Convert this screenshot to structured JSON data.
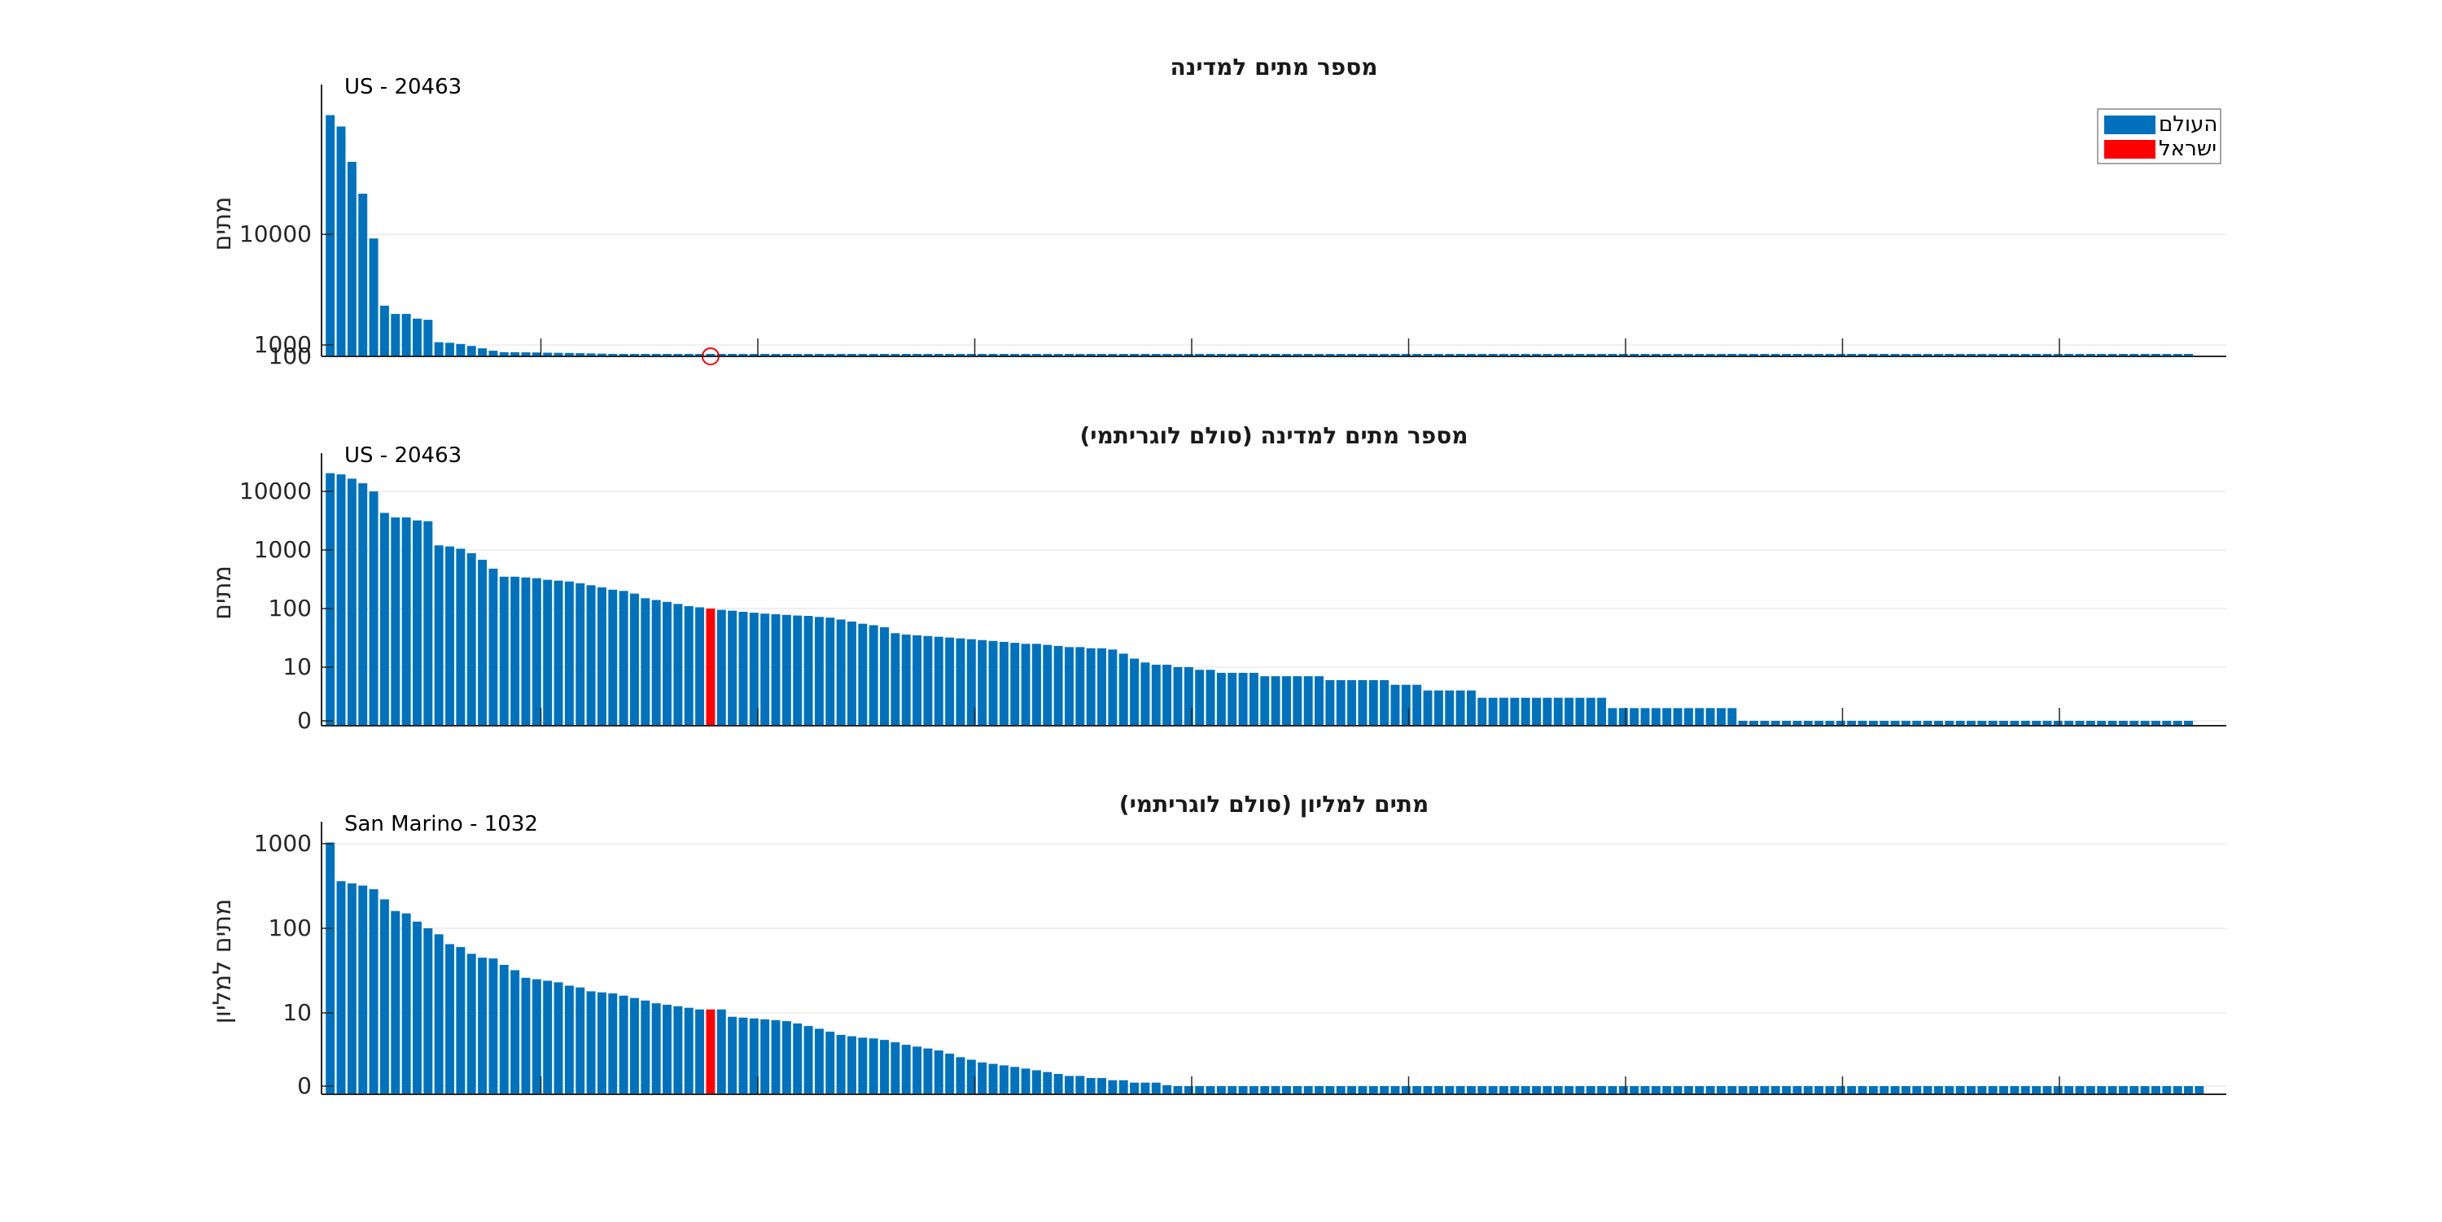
{
  "colors": {
    "world": "#0072BD",
    "israel": "#FF0000",
    "grid": "#ebebeb",
    "axis": "#262626"
  },
  "legend": {
    "items": [
      {
        "label": "העולם",
        "color": "#0072BD"
      },
      {
        "label": "ישראל",
        "color": "#FF0000"
      }
    ],
    "location": "top-right"
  },
  "chart_data": [
    {
      "type": "bar",
      "title": "מספר מתים למדינה",
      "ylabel": "מתים",
      "annotation": "US - 20463",
      "yscale": "linear",
      "ylim": [
        0,
        22500
      ],
      "yticks": [
        100,
        1000,
        10000
      ],
      "yticklabels": [
        "100",
        "1000",
        "10000"
      ],
      "marker": "circle at Israel bar",
      "highlight_index": 35,
      "grid": true,
      "values": [
        20463,
        19500,
        16500,
        13800,
        10000,
        4300,
        3600,
        3600,
        3200,
        3100,
        1200,
        1150,
        1050,
        880,
        680,
        480,
        350,
        350,
        340,
        330,
        310,
        300,
        290,
        270,
        250,
        230,
        210,
        200,
        180,
        150,
        140,
        130,
        120,
        110,
        105,
        100,
        95,
        92,
        88,
        85,
        82,
        80,
        78,
        76,
        75,
        72,
        70,
        65,
        60,
        55,
        52,
        48,
        38,
        36,
        35,
        34,
        33,
        32,
        31,
        30,
        29,
        28,
        27,
        26,
        25,
        25,
        24,
        23,
        22,
        22,
        21,
        21,
        20,
        17,
        14,
        12,
        11,
        11,
        10,
        10,
        9,
        9,
        8,
        8,
        8,
        8,
        7,
        7,
        7,
        7,
        7,
        7,
        6,
        6,
        6,
        6,
        6,
        6,
        5,
        5,
        5,
        4,
        4,
        4,
        4,
        4,
        3,
        3,
        3,
        3,
        3,
        3,
        3,
        3,
        3,
        3,
        3,
        3,
        2,
        2,
        2,
        2,
        2,
        2,
        2,
        2,
        2,
        2,
        2,
        2,
        1,
        1,
        1,
        1,
        1,
        1,
        1,
        1,
        1,
        1,
        1,
        1,
        1,
        1,
        1,
        1,
        1,
        1,
        1,
        1,
        1,
        1,
        1,
        1,
        1,
        1,
        1,
        1,
        1,
        1,
        1,
        1,
        1,
        1,
        1,
        1,
        1,
        1,
        1,
        1,
        1,
        1
      ]
    },
    {
      "type": "bar",
      "title": "מספר מתים למדינה (סולם לוגריתמי)",
      "ylabel": "מתים",
      "annotation": "US - 20463",
      "yscale": "log",
      "ylim": [
        0,
        25000
      ],
      "yticks": [
        0,
        10,
        100,
        1000,
        10000
      ],
      "yticklabels": [
        "0",
        "10",
        "100",
        "1000",
        "10000"
      ],
      "highlight_index": 35,
      "grid": true,
      "values": [
        20463,
        19500,
        16500,
        13800,
        10000,
        4300,
        3600,
        3600,
        3200,
        3100,
        1200,
        1150,
        1050,
        880,
        680,
        480,
        350,
        350,
        340,
        330,
        310,
        300,
        290,
        270,
        250,
        230,
        210,
        200,
        180,
        150,
        140,
        130,
        120,
        110,
        105,
        100,
        95,
        92,
        88,
        85,
        82,
        80,
        78,
        76,
        75,
        72,
        70,
        65,
        60,
        55,
        52,
        48,
        38,
        36,
        35,
        34,
        33,
        32,
        31,
        30,
        29,
        28,
        27,
        26,
        25,
        25,
        24,
        23,
        22,
        22,
        21,
        21,
        20,
        17,
        14,
        12,
        11,
        11,
        10,
        10,
        9,
        9,
        8,
        8,
        8,
        8,
        7,
        7,
        7,
        7,
        7,
        7,
        6,
        6,
        6,
        6,
        6,
        6,
        5,
        5,
        5,
        4,
        4,
        4,
        4,
        4,
        3,
        3,
        3,
        3,
        3,
        3,
        3,
        3,
        3,
        3,
        3,
        3,
        2,
        2,
        2,
        2,
        2,
        2,
        2,
        2,
        2,
        2,
        2,
        2,
        1,
        1,
        1,
        1,
        1,
        1,
        1,
        1,
        1,
        1,
        1,
        1,
        1,
        1,
        1,
        1,
        1,
        1,
        1,
        1,
        1,
        1,
        1,
        1,
        1,
        1,
        1,
        1,
        1,
        1,
        1,
        1,
        1,
        1,
        1,
        1,
        1,
        1,
        1,
        1,
        1,
        1
      ]
    },
    {
      "type": "bar",
      "title": "מתים למליון (סולם לוגריתמי)",
      "ylabel": "מתים למליון",
      "annotation": "San Marino - 1032",
      "yscale": "log",
      "ylim": [
        0,
        1300
      ],
      "yticks": [
        0,
        10,
        100,
        1000
      ],
      "yticklabels": [
        "0",
        "10",
        "100",
        "1000"
      ],
      "highlight_index": 35,
      "grid": true,
      "values": [
        1032,
        360,
        340,
        320,
        290,
        220,
        160,
        150,
        120,
        100,
        85,
        65,
        60,
        50,
        45,
        44,
        37,
        32,
        26,
        25,
        24,
        23,
        21,
        20,
        18,
        17.5,
        17,
        16,
        15,
        14,
        13,
        12.5,
        12,
        11.5,
        11,
        11,
        11,
        9,
        8.8,
        8.6,
        8.4,
        8.2,
        8,
        7.5,
        7,
        6.5,
        6,
        5.5,
        5.3,
        5.1,
        5,
        4.8,
        4.5,
        4.2,
        4,
        3.8,
        3.6,
        3.3,
        3,
        2.8,
        2.6,
        2.5,
        2.4,
        2.3,
        2.2,
        2.1,
        2,
        1.9,
        1.8,
        1.8,
        1.7,
        1.7,
        1.6,
        1.6,
        1.5,
        1.5,
        1.5,
        1.4,
        1.3,
        1.2,
        1.1,
        1,
        0.8,
        0.6,
        0.5,
        0.5,
        0.5,
        0.5,
        0.5,
        0.5,
        0.5,
        0.5,
        0.5,
        0.5,
        0.5,
        0.5,
        0.5,
        0.5,
        0.5,
        0.5,
        0.5,
        0.5,
        0.5,
        0.5,
        0.5,
        0.5,
        0.5,
        0.5,
        0.5,
        0.5,
        0.5,
        0.5,
        0.5,
        0.5,
        0.5,
        0.5,
        0.5,
        0.5,
        0.5,
        0.5,
        0.5,
        0.5,
        0.5,
        0.5,
        0.5,
        0.5,
        0.5,
        0.5,
        0.5,
        0.5,
        0.5,
        0.5,
        0.5,
        0.5,
        0.5,
        0.5,
        0.5,
        0.5,
        0.5,
        0.5,
        0.5,
        0.5,
        0.5,
        0.5,
        0.5,
        0.5,
        0.5,
        0.5,
        0.5,
        0.5,
        0.5,
        0.5,
        0.5,
        0.5,
        0.5,
        0.5,
        0.5,
        0.5,
        0.5,
        0.5,
        0.5,
        0.5,
        0.5,
        0.5,
        0.5,
        0.5,
        0.5,
        0.5,
        0.5,
        0.5,
        0.5,
        0.5,
        0.5
      ]
    }
  ]
}
